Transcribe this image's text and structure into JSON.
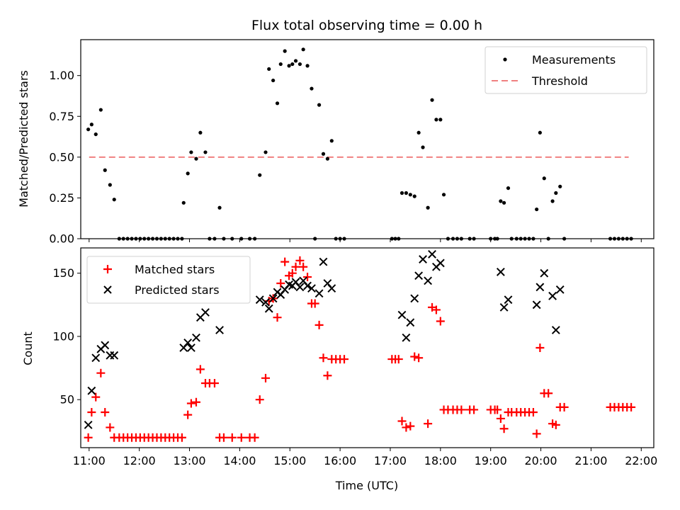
{
  "chart_data": [
    {
      "type": "scatter",
      "title": "Flux total observing time = 0.00 h",
      "xlabel": "",
      "ylabel": "Matched/Predicted stars",
      "xlim": [
        "10:50",
        "22:15"
      ],
      "ylim": [
        0,
        1.22
      ],
      "yticks": [
        0.0,
        0.25,
        0.5,
        0.75,
        1.0
      ],
      "ytick_labels": [
        "0.00",
        "0.25",
        "0.50",
        "0.75",
        "1.00"
      ],
      "legend": {
        "placement": "upper right",
        "entries": [
          "Measurements",
          "Threshold"
        ]
      },
      "threshold": {
        "name": "Threshold",
        "y": 0.5,
        "x_start": "11:00",
        "x_end": "21:45",
        "color": "#f08080"
      },
      "series": [
        {
          "name": "Measurements",
          "color": "#000000",
          "points": [
            [
              "10:59",
              0.67
            ],
            [
              "11:03",
              0.7
            ],
            [
              "11:08",
              0.64
            ],
            [
              "11:14",
              0.79
            ],
            [
              "11:19",
              0.42
            ],
            [
              "11:25",
              0.33
            ],
            [
              "11:30",
              0.24
            ],
            [
              "11:36",
              0.0
            ],
            [
              "11:41",
              0.0
            ],
            [
              "11:46",
              0.0
            ],
            [
              "11:51",
              0.0
            ],
            [
              "11:56",
              0.0
            ],
            [
              "12:01",
              0.0
            ],
            [
              "12:06",
              0.0
            ],
            [
              "12:11",
              0.0
            ],
            [
              "12:16",
              0.0
            ],
            [
              "12:21",
              0.0
            ],
            [
              "12:26",
              0.0
            ],
            [
              "12:31",
              0.0
            ],
            [
              "12:36",
              0.0
            ],
            [
              "12:41",
              0.0
            ],
            [
              "12:46",
              0.0
            ],
            [
              "12:51",
              0.0
            ],
            [
              "12:53",
              0.22
            ],
            [
              "12:58",
              0.4
            ],
            [
              "13:02",
              0.53
            ],
            [
              "13:08",
              0.49
            ],
            [
              "13:13",
              0.65
            ],
            [
              "13:19",
              0.53
            ],
            [
              "13:24",
              0.0
            ],
            [
              "13:30",
              0.0
            ],
            [
              "13:36",
              0.19
            ],
            [
              "13:41",
              0.0
            ],
            [
              "13:51",
              0.0
            ],
            [
              "14:02",
              0.0
            ],
            [
              "14:12",
              0.0
            ],
            [
              "14:18",
              0.0
            ],
            [
              "14:24",
              0.39
            ],
            [
              "14:31",
              0.53
            ],
            [
              "14:35",
              1.04
            ],
            [
              "14:40",
              0.97
            ],
            [
              "14:45",
              0.83
            ],
            [
              "14:49",
              1.07
            ],
            [
              "14:54",
              1.15
            ],
            [
              "14:59",
              1.06
            ],
            [
              "15:03",
              1.07
            ],
            [
              "15:07",
              1.09
            ],
            [
              "15:12",
              1.07
            ],
            [
              "15:16",
              1.16
            ],
            [
              "15:21",
              1.06
            ],
            [
              "15:26",
              0.92
            ],
            [
              "15:30",
              0.0
            ],
            [
              "15:35",
              0.82
            ],
            [
              "15:40",
              0.52
            ],
            [
              "15:45",
              0.49
            ],
            [
              "15:50",
              0.6
            ],
            [
              "15:55",
              0.0
            ],
            [
              "16:00",
              0.0
            ],
            [
              "16:05",
              0.0
            ],
            [
              "17:02",
              0.0
            ],
            [
              "17:06",
              0.0
            ],
            [
              "17:10",
              0.0
            ],
            [
              "17:14",
              0.28
            ],
            [
              "17:19",
              0.28
            ],
            [
              "17:24",
              0.27
            ],
            [
              "17:29",
              0.26
            ],
            [
              "17:34",
              0.65
            ],
            [
              "17:39",
              0.56
            ],
            [
              "17:45",
              0.19
            ],
            [
              "17:50",
              0.85
            ],
            [
              "17:55",
              0.73
            ],
            [
              "18:00",
              0.73
            ],
            [
              "18:04",
              0.27
            ],
            [
              "18:09",
              0.0
            ],
            [
              "18:15",
              0.0
            ],
            [
              "18:20",
              0.0
            ],
            [
              "18:25",
              0.0
            ],
            [
              "18:35",
              0.0
            ],
            [
              "18:40",
              0.0
            ],
            [
              "19:00",
              0.0
            ],
            [
              "19:05",
              0.0
            ],
            [
              "19:08",
              0.0
            ],
            [
              "19:12",
              0.23
            ],
            [
              "19:16",
              0.22
            ],
            [
              "19:21",
              0.31
            ],
            [
              "19:25",
              0.0
            ],
            [
              "19:31",
              0.0
            ],
            [
              "19:36",
              0.0
            ],
            [
              "19:41",
              0.0
            ],
            [
              "19:46",
              0.0
            ],
            [
              "19:51",
              0.0
            ],
            [
              "19:55",
              0.18
            ],
            [
              "19:59",
              0.65
            ],
            [
              "20:04",
              0.37
            ],
            [
              "20:09",
              0.0
            ],
            [
              "20:14",
              0.23
            ],
            [
              "20:18",
              0.28
            ],
            [
              "20:23",
              0.32
            ],
            [
              "20:28",
              0.0
            ],
            [
              "21:23",
              0.0
            ],
            [
              "21:28",
              0.0
            ],
            [
              "21:33",
              0.0
            ],
            [
              "21:38",
              0.0
            ],
            [
              "21:43",
              0.0
            ],
            [
              "21:48",
              0.0
            ]
          ]
        }
      ]
    },
    {
      "type": "scatter",
      "title": "",
      "xlabel": "Time (UTC)",
      "ylabel": "Count",
      "xlim": [
        "10:50",
        "22:15"
      ],
      "ylim": [
        12,
        170
      ],
      "xticks": [
        "11:00",
        "12:00",
        "13:00",
        "14:00",
        "15:00",
        "16:00",
        "17:00",
        "18:00",
        "19:00",
        "20:00",
        "21:00",
        "22:00"
      ],
      "yticks": [
        50,
        100,
        150
      ],
      "legend": {
        "placement": "upper left",
        "entries": [
          "Matched stars",
          "Predicted stars"
        ]
      },
      "series": [
        {
          "name": "Matched stars",
          "color": "#ff0000",
          "points": [
            [
              "10:59",
              20
            ],
            [
              "11:03",
              40
            ],
            [
              "11:08",
              52
            ],
            [
              "11:14",
              71
            ],
            [
              "11:19",
              40
            ],
            [
              "11:25",
              28
            ],
            [
              "11:30",
              20
            ],
            [
              "11:36",
              20
            ],
            [
              "11:41",
              20
            ],
            [
              "11:46",
              20
            ],
            [
              "11:51",
              20
            ],
            [
              "11:56",
              20
            ],
            [
              "12:01",
              20
            ],
            [
              "12:06",
              20
            ],
            [
              "12:11",
              20
            ],
            [
              "12:16",
              20
            ],
            [
              "12:21",
              20
            ],
            [
              "12:26",
              20
            ],
            [
              "12:31",
              20
            ],
            [
              "12:36",
              20
            ],
            [
              "12:41",
              20
            ],
            [
              "12:46",
              20
            ],
            [
              "12:51",
              20
            ],
            [
              "12:58",
              38
            ],
            [
              "13:02",
              47
            ],
            [
              "13:08",
              48
            ],
            [
              "13:13",
              74
            ],
            [
              "13:19",
              63
            ],
            [
              "13:24",
              63
            ],
            [
              "13:30",
              63
            ],
            [
              "13:36",
              20
            ],
            [
              "13:41",
              20
            ],
            [
              "13:51",
              20
            ],
            [
              "14:02",
              20
            ],
            [
              "14:12",
              20
            ],
            [
              "14:18",
              20
            ],
            [
              "14:24",
              50
            ],
            [
              "14:31",
              67
            ],
            [
              "14:35",
              128
            ],
            [
              "14:40",
              130
            ],
            [
              "14:45",
              115
            ],
            [
              "14:49",
              142
            ],
            [
              "14:54",
              159
            ],
            [
              "14:59",
              148
            ],
            [
              "15:03",
              150
            ],
            [
              "15:07",
              155
            ],
            [
              "15:12",
              160
            ],
            [
              "15:16",
              155
            ],
            [
              "15:21",
              147
            ],
            [
              "15:26",
              126
            ],
            [
              "15:30",
              126
            ],
            [
              "15:35",
              109
            ],
            [
              "15:40",
              83
            ],
            [
              "15:45",
              69
            ],
            [
              "15:50",
              82
            ],
            [
              "15:55",
              82
            ],
            [
              "16:00",
              82
            ],
            [
              "16:05",
              82
            ],
            [
              "17:02",
              82
            ],
            [
              "17:06",
              82
            ],
            [
              "17:10",
              82
            ],
            [
              "17:14",
              33
            ],
            [
              "17:19",
              28
            ],
            [
              "17:24",
              29
            ],
            [
              "17:29",
              84
            ],
            [
              "17:34",
              83
            ],
            [
              "17:45",
              31
            ],
            [
              "17:50",
              123
            ],
            [
              "17:55",
              121
            ],
            [
              "18:00",
              112
            ],
            [
              "18:04",
              42
            ],
            [
              "18:09",
              42
            ],
            [
              "18:15",
              42
            ],
            [
              "18:20",
              42
            ],
            [
              "18:25",
              42
            ],
            [
              "18:35",
              42
            ],
            [
              "18:40",
              42
            ],
            [
              "19:00",
              42
            ],
            [
              "19:05",
              42
            ],
            [
              "19:08",
              42
            ],
            [
              "19:12",
              35
            ],
            [
              "19:16",
              27
            ],
            [
              "19:21",
              40
            ],
            [
              "19:25",
              40
            ],
            [
              "19:31",
              40
            ],
            [
              "19:36",
              40
            ],
            [
              "19:41",
              40
            ],
            [
              "19:46",
              40
            ],
            [
              "19:51",
              40
            ],
            [
              "19:55",
              23
            ],
            [
              "19:59",
              91
            ],
            [
              "20:04",
              55
            ],
            [
              "20:09",
              55
            ],
            [
              "20:14",
              31
            ],
            [
              "20:18",
              30
            ],
            [
              "20:23",
              44
            ],
            [
              "20:28",
              44
            ],
            [
              "21:23",
              44
            ],
            [
              "21:28",
              44
            ],
            [
              "21:33",
              44
            ],
            [
              "21:38",
              44
            ],
            [
              "21:43",
              44
            ],
            [
              "21:48",
              44
            ]
          ]
        },
        {
          "name": "Predicted stars",
          "color": "#000000",
          "points": [
            [
              "10:59",
              30
            ],
            [
              "11:03",
              57
            ],
            [
              "11:08",
              83
            ],
            [
              "11:14",
              90
            ],
            [
              "11:19",
              93
            ],
            [
              "11:25",
              85
            ],
            [
              "11:30",
              85
            ],
            [
              "12:53",
              91
            ],
            [
              "12:58",
              95
            ],
            [
              "13:02",
              91
            ],
            [
              "13:08",
              99
            ],
            [
              "13:13",
              115
            ],
            [
              "13:19",
              119
            ],
            [
              "13:36",
              105
            ],
            [
              "14:24",
              129
            ],
            [
              "14:31",
              127
            ],
            [
              "14:35",
              122
            ],
            [
              "14:40",
              130
            ],
            [
              "14:45",
              135
            ],
            [
              "14:49",
              133
            ],
            [
              "14:54",
              137
            ],
            [
              "14:59",
              141
            ],
            [
              "15:03",
              140
            ],
            [
              "15:07",
              143
            ],
            [
              "15:12",
              139
            ],
            [
              "15:16",
              144
            ],
            [
              "15:21",
              140
            ],
            [
              "15:26",
              138
            ],
            [
              "15:35",
              134
            ],
            [
              "15:40",
              159
            ],
            [
              "15:45",
              142
            ],
            [
              "15:50",
              138
            ],
            [
              "17:14",
              117
            ],
            [
              "17:19",
              99
            ],
            [
              "17:24",
              111
            ],
            [
              "17:29",
              130
            ],
            [
              "17:34",
              148
            ],
            [
              "17:39",
              161
            ],
            [
              "17:45",
              144
            ],
            [
              "17:50",
              165
            ],
            [
              "17:55",
              155
            ],
            [
              "18:00",
              158
            ],
            [
              "19:12",
              151
            ],
            [
              "19:16",
              123
            ],
            [
              "19:21",
              129
            ],
            [
              "19:55",
              125
            ],
            [
              "19:59",
              139
            ],
            [
              "20:04",
              150
            ],
            [
              "20:14",
              132
            ],
            [
              "20:18",
              105
            ],
            [
              "20:23",
              137
            ]
          ]
        }
      ]
    }
  ]
}
